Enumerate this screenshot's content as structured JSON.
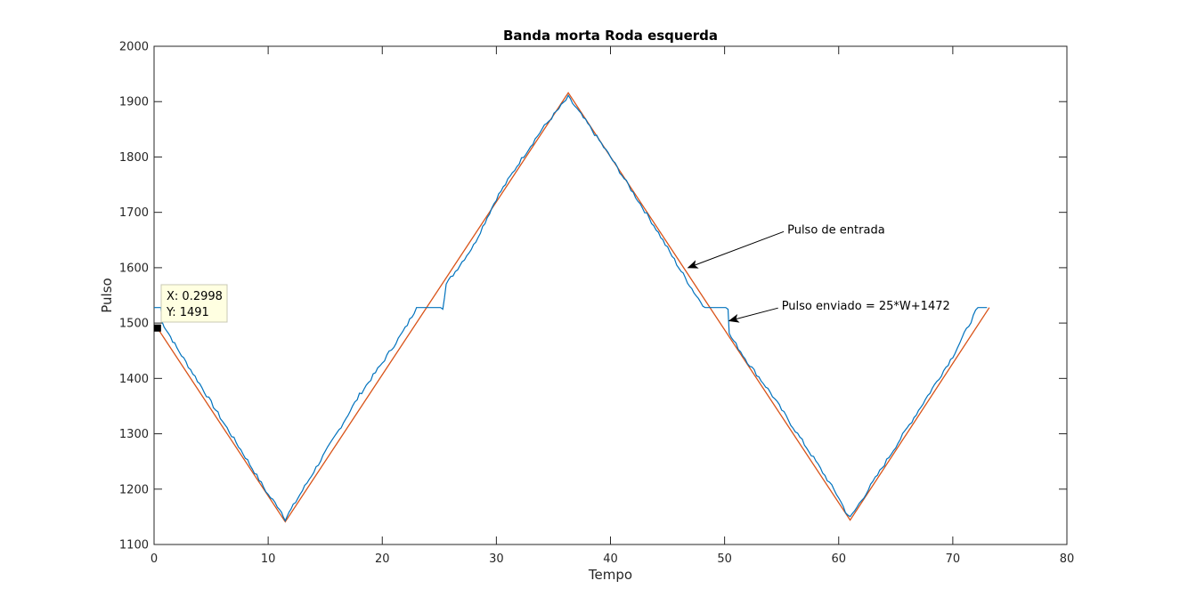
{
  "chart_data": {
    "type": "line",
    "title": "Banda morta Roda esquerda",
    "xlabel": "Tempo",
    "ylabel": "Pulso",
    "xlim": [
      0,
      80
    ],
    "ylim": [
      1100,
      2000
    ],
    "xticks": [
      0,
      10,
      20,
      30,
      40,
      50,
      60,
      70,
      80
    ],
    "yticks": [
      1100,
      1200,
      1300,
      1400,
      1500,
      1600,
      1700,
      1800,
      1900,
      2000
    ],
    "grid": false,
    "colors": {
      "input": "#D95319",
      "sent": "#0072BD"
    },
    "series": [
      {
        "key": "input",
        "x": [
          0.3,
          11.5,
          36.3,
          61.0,
          73.2
        ],
        "y": [
          1491,
          1141,
          1916,
          1144,
          1528
        ]
      },
      {
        "key": "sent",
        "x": [
          0.0,
          0.6,
          0.7,
          2.0,
          4.0,
          6.0,
          8.0,
          10.0,
          11.0,
          11.5,
          12.0,
          14.0,
          16.0,
          18.0,
          20.0,
          22.0,
          23.0,
          25.3,
          25.6,
          28.0,
          30.0,
          32.0,
          34.0,
          36.3,
          38.0,
          40.0,
          42.0,
          44.0,
          46.0,
          47.5,
          48.3,
          50.3,
          50.4,
          52.0,
          54.0,
          56.0,
          58.0,
          60.0,
          60.6,
          61.0,
          62.0,
          64.0,
          66.0,
          68.0,
          70.0,
          72.2,
          73.0
        ],
        "y": [
          1528,
          1528,
          1502,
          1455,
          1390,
          1323,
          1258,
          1190,
          1165,
          1146,
          1163,
          1232,
          1300,
          1370,
          1428,
          1490,
          1528,
          1528,
          1570,
          1640,
          1725,
          1790,
          1850,
          1908,
          1860,
          1800,
          1735,
          1670,
          1600,
          1550,
          1528,
          1528,
          1480,
          1430,
          1375,
          1312,
          1250,
          1185,
          1160,
          1148,
          1180,
          1245,
          1310,
          1375,
          1440,
          1528,
          1528
        ]
      }
    ],
    "annotations": [
      {
        "text": "Pulso de entrada",
        "x": 55.5,
        "y": 1662,
        "arrow_to": [
          46.8,
          1600
        ]
      },
      {
        "text": "Pulso enviado = 25*W+1472",
        "x": 55.0,
        "y": 1524,
        "arrow_to": [
          50.4,
          1504
        ]
      }
    ],
    "datatip": {
      "x_text": "X: 0.2998",
      "y_text": "Y: 1491",
      "point": [
        0.3,
        1491
      ]
    }
  }
}
